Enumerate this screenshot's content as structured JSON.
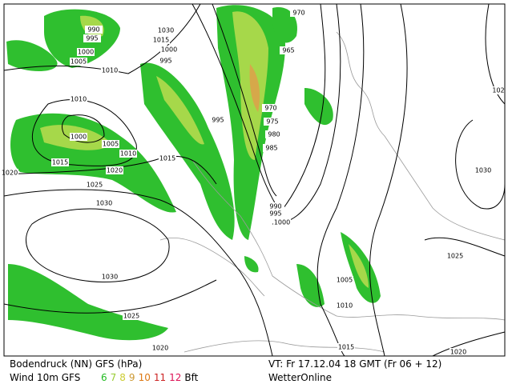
{
  "map": {
    "isobar_labels": [
      "990",
      "995",
      "1000",
      "1005",
      "1010",
      "1030",
      "1015",
      "1000",
      "995",
      "970",
      "965",
      "970",
      "975",
      "980",
      "985",
      "995",
      "1010",
      "1000",
      "1005",
      "1010",
      "1015",
      "1015",
      "1020",
      "1020",
      "1025",
      "1030",
      "990",
      "995",
      "1000",
      "1030",
      "1025",
      "1020",
      "1005",
      "1010",
      "1015",
      "1030",
      "1025",
      "1020",
      "102"
    ]
  },
  "footer": {
    "title": "Bodendruck (NN) GFS (hPa)",
    "wind": "Wind 10m GFS",
    "bft": [
      {
        "label": "6",
        "color": "#22bb22"
      },
      {
        "label": "7",
        "color": "#99cc33"
      },
      {
        "label": "8",
        "color": "#cccc33"
      },
      {
        "label": "9",
        "color": "#cc9933"
      },
      {
        "label": "10",
        "color": "#dd7711"
      },
      {
        "label": "11",
        "color": "#cc2222"
      },
      {
        "label": "12",
        "color": "#dd1155"
      }
    ],
    "bft_unit": "Bft",
    "valid_time": "VT: Fr 17.12.04 18 GMT (Fr 06 + 12)",
    "source": "WetterOnline"
  }
}
